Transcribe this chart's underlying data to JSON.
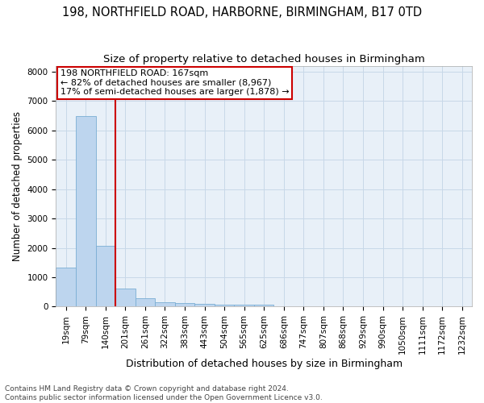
{
  "title": "198, NORTHFIELD ROAD, HARBORNE, BIRMINGHAM, B17 0TD",
  "subtitle": "Size of property relative to detached houses in Birmingham",
  "xlabel": "Distribution of detached houses by size in Birmingham",
  "ylabel": "Number of detached properties",
  "categories": [
    "19sqm",
    "79sqm",
    "140sqm",
    "201sqm",
    "261sqm",
    "322sqm",
    "383sqm",
    "443sqm",
    "504sqm",
    "565sqm",
    "625sqm",
    "686sqm",
    "747sqm",
    "807sqm",
    "868sqm",
    "929sqm",
    "990sqm",
    "1050sqm",
    "1111sqm",
    "1172sqm",
    "1232sqm"
  ],
  "values": [
    1320,
    6500,
    2080,
    630,
    295,
    150,
    120,
    85,
    75,
    75,
    80,
    0,
    0,
    0,
    0,
    0,
    0,
    0,
    0,
    0,
    0
  ],
  "bar_color": "#bdd5ee",
  "bar_edge_color": "#7aaed4",
  "vline_x": 2.5,
  "vline_color": "#cc0000",
  "annotation_line1": "198 NORTHFIELD ROAD: 167sqm",
  "annotation_line2": "← 82% of detached houses are smaller (8,967)",
  "annotation_line3": "17% of semi-detached houses are larger (1,878) →",
  "ylim": [
    0,
    8200
  ],
  "yticks": [
    0,
    1000,
    2000,
    3000,
    4000,
    5000,
    6000,
    7000,
    8000
  ],
  "grid_color": "#c8d8e8",
  "background_color": "#e8f0f8",
  "footer_line1": "Contains HM Land Registry data © Crown copyright and database right 2024.",
  "footer_line2": "Contains public sector information licensed under the Open Government Licence v3.0.",
  "title_fontsize": 10.5,
  "subtitle_fontsize": 9.5,
  "xlabel_fontsize": 9,
  "ylabel_fontsize": 8.5,
  "tick_fontsize": 7.5,
  "annotation_fontsize": 8,
  "footer_fontsize": 6.5
}
